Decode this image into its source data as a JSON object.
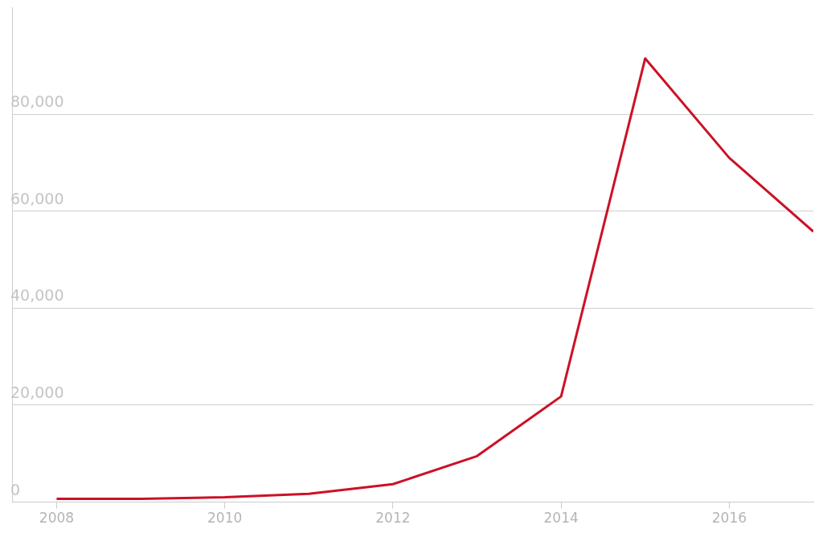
{
  "chart_data": {
    "type": "line",
    "x": [
      2008,
      2009,
      2010,
      2011,
      2012,
      2013,
      2014,
      2015,
      2016,
      2017
    ],
    "series": [
      {
        "color": "#cc1126",
        "values": [
          700,
          700,
          1000,
          1700,
          3700,
          9500,
          21800,
          91500,
          71000,
          55800
        ]
      }
    ],
    "xlim": [
      2007.47,
      2017
    ],
    "xticks": [
      2008,
      2010,
      2012,
      2014,
      2016
    ],
    "ylim": [
      0,
      102000
    ],
    "yticks": [
      0,
      {
        "value": 20000,
        "label": "20,000"
      },
      {
        "value": 40000,
        "label": "40,000"
      },
      {
        "value": 60000,
        "label": "60,000"
      },
      {
        "value": 80000,
        "label": "80,000"
      }
    ],
    "grid": "y",
    "legend": false,
    "marker": "none",
    "line_style": "solid"
  }
}
